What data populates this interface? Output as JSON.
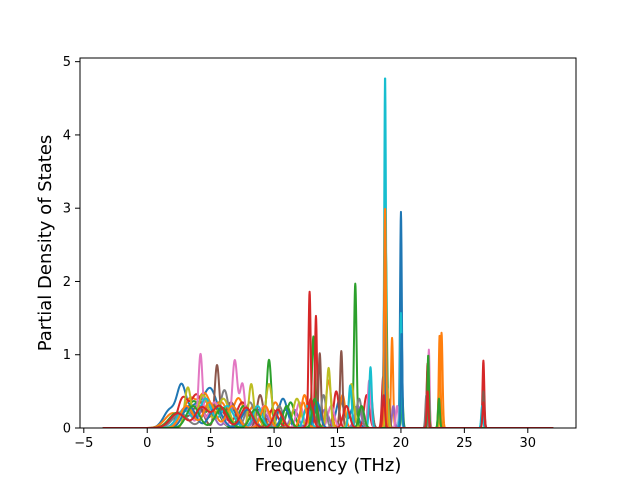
{
  "chart_data": {
    "type": "line",
    "title": "",
    "xlabel": "Frequency (THz)",
    "ylabel": "Partial Density of States",
    "xlim": [
      -5.3,
      33.8
    ],
    "ylim": [
      0,
      5.05
    ],
    "x_ticks": [
      -5,
      0,
      5,
      10,
      15,
      20,
      25,
      30
    ],
    "y_ticks": [
      0,
      1,
      2,
      3,
      4,
      5
    ],
    "x_tick_labels": [
      "−5",
      "0",
      "5",
      "10",
      "15",
      "20",
      "25",
      "30"
    ],
    "y_tick_labels": [
      "0",
      "1",
      "2",
      "3",
      "4",
      "5"
    ],
    "grid": false,
    "legend": "none",
    "x_range": [
      -3.5,
      32.0
    ],
    "series": [
      {
        "color": "#1f77b4",
        "peaks": [
          [
            1.8,
            0.25,
            0.5
          ],
          [
            2.7,
            0.5,
            0.35
          ],
          [
            3.8,
            0.3,
            0.6
          ],
          [
            5.0,
            0.5,
            0.5
          ],
          [
            6.5,
            0.3,
            0.5
          ],
          [
            8.8,
            0.25,
            0.4
          ],
          [
            10.7,
            0.4,
            0.35
          ],
          [
            13.0,
            0.35,
            0.3
          ],
          [
            15.2,
            0.4,
            0.3
          ],
          [
            16.3,
            0.3,
            0.3
          ],
          [
            20.0,
            2.95,
            0.07
          ],
          [
            22.1,
            0.8,
            0.07
          ],
          [
            26.5,
            0.45,
            0.08
          ]
        ]
      },
      {
        "color": "#ff7f0e",
        "peaks": [
          [
            2.0,
            0.2,
            0.6
          ],
          [
            3.4,
            0.38,
            0.45
          ],
          [
            4.5,
            0.45,
            0.45
          ],
          [
            5.8,
            0.35,
            0.5
          ],
          [
            7.2,
            0.4,
            0.4
          ],
          [
            8.4,
            0.3,
            0.35
          ],
          [
            10.1,
            0.35,
            0.35
          ],
          [
            12.4,
            0.45,
            0.25
          ],
          [
            14.3,
            0.65,
            0.2
          ],
          [
            15.4,
            0.45,
            0.2
          ],
          [
            19.3,
            1.23,
            0.08
          ],
          [
            22.2,
            0.55,
            0.07
          ],
          [
            23.2,
            1.3,
            0.08
          ],
          [
            26.5,
            0.5,
            0.07
          ]
        ]
      },
      {
        "color": "#2ca02c",
        "peaks": [
          [
            2.3,
            0.2,
            0.6
          ],
          [
            3.7,
            0.35,
            0.5
          ],
          [
            5.2,
            0.3,
            0.5
          ],
          [
            7.6,
            0.3,
            0.4
          ],
          [
            9.6,
            0.93,
            0.18
          ],
          [
            11.3,
            0.35,
            0.3
          ],
          [
            13.1,
            1.25,
            0.12
          ],
          [
            16.4,
            1.97,
            0.1
          ],
          [
            18.8,
            2.48,
            0.09
          ],
          [
            20.1,
            0.45,
            0.07
          ],
          [
            22.1,
            0.6,
            0.07
          ],
          [
            23.0,
            0.5,
            0.07
          ]
        ]
      },
      {
        "color": "#d62728",
        "peaks": [
          [
            2.8,
            0.4,
            0.4
          ],
          [
            3.9,
            0.45,
            0.45
          ],
          [
            5.6,
            0.3,
            0.5
          ],
          [
            7.5,
            0.35,
            0.45
          ],
          [
            9.9,
            0.25,
            0.4
          ],
          [
            12.8,
            1.86,
            0.09
          ],
          [
            13.3,
            1.53,
            0.08
          ],
          [
            14.9,
            0.5,
            0.2
          ],
          [
            17.3,
            0.45,
            0.2
          ],
          [
            18.6,
            0.7,
            0.1
          ],
          [
            22.1,
            0.88,
            0.07
          ],
          [
            26.5,
            0.92,
            0.07
          ]
        ]
      },
      {
        "color": "#9467bd",
        "peaks": [
          [
            3.0,
            0.28,
            0.5
          ],
          [
            4.7,
            0.38,
            0.45
          ],
          [
            6.8,
            0.28,
            0.45
          ],
          [
            9.0,
            0.25,
            0.45
          ],
          [
            11.6,
            0.25,
            0.3
          ],
          [
            14.0,
            0.25,
            0.3
          ],
          [
            16.6,
            0.3,
            0.25
          ],
          [
            19.4,
            0.3,
            0.1
          ]
        ]
      },
      {
        "color": "#8c564b",
        "peaks": [
          [
            2.5,
            0.2,
            0.6
          ],
          [
            4.0,
            0.3,
            0.45
          ],
          [
            5.5,
            0.85,
            0.18
          ],
          [
            6.6,
            0.35,
            0.4
          ],
          [
            8.9,
            0.45,
            0.25
          ],
          [
            13.6,
            1.02,
            0.1
          ],
          [
            15.3,
            1.05,
            0.1
          ],
          [
            17.6,
            0.5,
            0.15
          ],
          [
            19.0,
            0.4,
            0.1
          ],
          [
            26.5,
            0.5,
            0.07
          ]
        ]
      },
      {
        "color": "#e377c2",
        "peaks": [
          [
            3.0,
            0.25,
            0.5
          ],
          [
            4.2,
            0.98,
            0.16
          ],
          [
            5.3,
            0.35,
            0.45
          ],
          [
            6.9,
            0.92,
            0.2
          ],
          [
            7.5,
            0.6,
            0.2
          ],
          [
            9.2,
            0.3,
            0.35
          ],
          [
            12.0,
            0.35,
            0.25
          ],
          [
            14.5,
            0.3,
            0.25
          ],
          [
            17.5,
            0.65,
            0.12
          ],
          [
            19.7,
            0.3,
            0.1
          ],
          [
            22.2,
            1.07,
            0.06
          ]
        ]
      },
      {
        "color": "#7f7f7f",
        "peaks": [
          [
            2.6,
            0.2,
            0.6
          ],
          [
            4.9,
            0.3,
            0.5
          ],
          [
            6.1,
            0.5,
            0.3
          ],
          [
            8.1,
            0.35,
            0.35
          ],
          [
            10.4,
            0.3,
            0.3
          ],
          [
            13.9,
            0.45,
            0.2
          ],
          [
            16.7,
            0.4,
            0.2
          ],
          [
            18.8,
            0.6,
            0.1
          ],
          [
            22.0,
            0.45,
            0.07
          ]
        ]
      },
      {
        "color": "#bcbd22",
        "peaks": [
          [
            3.2,
            0.55,
            0.25
          ],
          [
            4.4,
            0.45,
            0.4
          ],
          [
            6.0,
            0.4,
            0.45
          ],
          [
            8.2,
            0.6,
            0.2
          ],
          [
            9.6,
            0.6,
            0.25
          ],
          [
            11.8,
            0.4,
            0.3
          ],
          [
            14.3,
            0.82,
            0.15
          ],
          [
            16.1,
            0.6,
            0.2
          ],
          [
            18.9,
            0.55,
            0.1
          ],
          [
            23.1,
            0.5,
            0.07
          ]
        ]
      },
      {
        "color": "#17becf",
        "peaks": [
          [
            2.9,
            0.25,
            0.55
          ],
          [
            4.6,
            0.4,
            0.45
          ],
          [
            6.3,
            0.3,
            0.5
          ],
          [
            8.7,
            0.3,
            0.35
          ],
          [
            12.6,
            0.3,
            0.25
          ],
          [
            16.0,
            0.58,
            0.12
          ],
          [
            17.6,
            0.83,
            0.1
          ],
          [
            18.75,
            4.82,
            0.07
          ],
          [
            20.0,
            1.57,
            0.06
          ],
          [
            26.4,
            0.3,
            0.07
          ]
        ]
      },
      {
        "color": "#1f77b4",
        "peaks": [
          [
            3.3,
            0.3,
            0.5
          ],
          [
            5.4,
            0.28,
            0.5
          ],
          [
            7.9,
            0.25,
            0.45
          ],
          [
            10.9,
            0.25,
            0.35
          ],
          [
            13.4,
            0.35,
            0.25
          ],
          [
            18.7,
            1.9,
            0.07
          ],
          [
            20.05,
            1.3,
            0.06
          ]
        ]
      },
      {
        "color": "#ff7f0e",
        "peaks": [
          [
            3.1,
            0.3,
            0.5
          ],
          [
            4.9,
            0.35,
            0.45
          ],
          [
            6.7,
            0.3,
            0.45
          ],
          [
            9.3,
            0.3,
            0.35
          ],
          [
            12.3,
            0.35,
            0.25
          ],
          [
            18.75,
            3.02,
            0.07
          ],
          [
            23.05,
            1.27,
            0.07
          ]
        ]
      },
      {
        "color": "#2ca02c",
        "peaks": [
          [
            3.6,
            0.3,
            0.5
          ],
          [
            5.9,
            0.28,
            0.5
          ],
          [
            8.5,
            0.25,
            0.4
          ],
          [
            11.0,
            0.3,
            0.3
          ],
          [
            13.2,
            0.4,
            0.2
          ],
          [
            16.9,
            0.3,
            0.2
          ],
          [
            22.15,
            1.0,
            0.06
          ],
          [
            23.0,
            0.4,
            0.07
          ]
        ]
      },
      {
        "color": "#d62728",
        "peaks": [
          [
            2.4,
            0.2,
            0.6
          ],
          [
            4.3,
            0.28,
            0.5
          ],
          [
            5.7,
            0.3,
            0.5
          ],
          [
            7.8,
            0.28,
            0.45
          ],
          [
            10.3,
            0.25,
            0.35
          ],
          [
            12.9,
            0.4,
            0.2
          ],
          [
            15.7,
            0.3,
            0.25
          ],
          [
            18.65,
            0.45,
            0.09
          ],
          [
            22.1,
            0.5,
            0.07
          ],
          [
            26.5,
            0.35,
            0.07
          ]
        ]
      }
    ]
  }
}
